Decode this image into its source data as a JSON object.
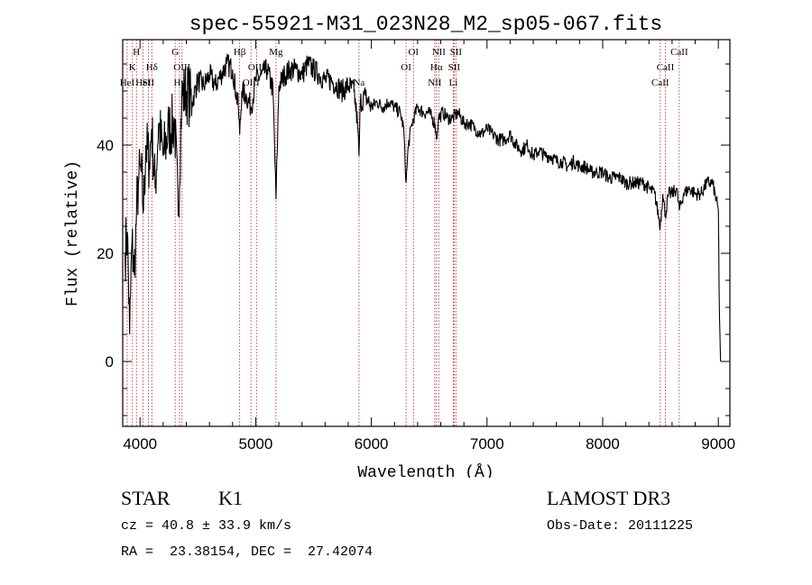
{
  "chart_data": {
    "type": "line",
    "title": "spec-55921-M31_023N28_M2_sp05-067.fits",
    "xlabel": "Wavelength (Å)",
    "ylabel": "Flux (relative)",
    "xlim": [
      3850,
      9100
    ],
    "ylim": [
      -12,
      59.5
    ],
    "xticks": [
      4000,
      5000,
      6000,
      7000,
      8000,
      9000
    ],
    "yticks": [
      0,
      20,
      40
    ],
    "series": [
      {
        "name": "spectrum",
        "x": [
          3870,
          3890,
          3910,
          3930,
          3950,
          3970,
          3990,
          4010,
          4030,
          4050,
          4080,
          4100,
          4130,
          4160,
          4200,
          4250,
          4300,
          4330,
          4360,
          4400,
          4450,
          4500,
          4550,
          4600,
          4650,
          4700,
          4750,
          4800,
          4850,
          4862,
          4880,
          4920,
          4960,
          5000,
          5050,
          5100,
          5150,
          5175,
          5185,
          5200,
          5250,
          5300,
          5350,
          5400,
          5450,
          5500,
          5550,
          5600,
          5650,
          5700,
          5750,
          5800,
          5850,
          5880,
          5893,
          5905,
          5950,
          6000,
          6050,
          6100,
          6150,
          6200,
          6250,
          6280,
          6300,
          6320,
          6350,
          6400,
          6450,
          6500,
          6550,
          6563,
          6580,
          6620,
          6660,
          6700,
          6750,
          6800,
          6850,
          6900,
          6950,
          7000,
          7050,
          7100,
          7150,
          7200,
          7250,
          7300,
          7350,
          7400,
          7450,
          7500,
          7550,
          7600,
          7650,
          7700,
          7750,
          7800,
          7850,
          7900,
          7950,
          8000,
          8050,
          8100,
          8150,
          8200,
          8250,
          8300,
          8350,
          8400,
          8450,
          8498,
          8520,
          8542,
          8570,
          8600,
          8640,
          8662,
          8700,
          8750,
          8800,
          8850,
          8900,
          8950,
          9000,
          9010,
          9020
        ],
        "values": [
          20,
          24,
          5,
          22,
          16,
          28,
          34,
          35,
          28,
          40,
          37,
          43,
          32,
          44,
          38,
          43,
          44,
          27,
          49,
          50,
          48,
          52,
          51,
          53,
          51,
          53,
          55,
          54,
          47,
          42,
          50,
          49,
          47,
          52,
          53,
          54,
          50,
          30,
          38,
          51,
          53,
          54,
          54,
          53,
          55,
          54,
          53,
          52,
          52,
          51,
          50,
          51,
          50,
          44,
          38,
          48,
          49,
          47,
          48,
          47,
          48,
          47,
          46,
          43,
          33,
          40,
          44,
          47,
          46,
          46,
          44,
          41,
          45,
          46,
          45,
          45,
          46,
          44,
          44,
          43,
          42,
          43,
          42,
          41,
          41,
          42,
          40,
          39,
          40,
          38,
          39,
          38,
          38,
          37,
          37,
          36,
          37,
          36,
          36,
          35,
          35,
          35,
          34,
          34,
          34,
          33,
          33,
          33,
          33,
          32,
          31,
          25,
          31,
          27,
          31,
          31,
          32,
          28,
          31,
          32,
          31,
          31,
          33,
          33,
          28,
          8,
          0
        ]
      }
    ],
    "lines": [
      {
        "x": 3934,
        "label": "K",
        "row": 1
      },
      {
        "x": 3969,
        "label": "H",
        "row": 0
      },
      {
        "x": 3889,
        "label": "HeI",
        "row": 2
      },
      {
        "x": 4026,
        "label": "HeI",
        "row": 2
      },
      {
        "x": 4072,
        "label": "SII",
        "row": 2
      },
      {
        "x": 4102,
        "label": "Hδ",
        "row": 1
      },
      {
        "x": 4304,
        "label": "G",
        "row": 0
      },
      {
        "x": 4341,
        "label": "Hγ",
        "row": 2
      },
      {
        "x": 4363,
        "label": "OIII",
        "row": 1
      },
      {
        "x": 4861,
        "label": "Hβ",
        "row": 0
      },
      {
        "x": 4959,
        "label": "OIII",
        "row": 2
      },
      {
        "x": 5007,
        "label": "OIII",
        "row": 1
      },
      {
        "x": 5175,
        "label": "Mg",
        "row": 0
      },
      {
        "x": 5893,
        "label": "Na",
        "row": 2
      },
      {
        "x": 6300,
        "label": "OI",
        "row": 1
      },
      {
        "x": 6364,
        "label": "OI",
        "row": 0
      },
      {
        "x": 6548,
        "label": "NII",
        "row": 2
      },
      {
        "x": 6563,
        "label": "Hα",
        "row": 1
      },
      {
        "x": 6583,
        "label": "NII",
        "row": 0
      },
      {
        "x": 6708,
        "label": "Li",
        "row": 2
      },
      {
        "x": 6716,
        "label": "SII",
        "row": 1
      },
      {
        "x": 6731,
        "label": "SII",
        "row": 0
      },
      {
        "x": 8498,
        "label": "CaII",
        "row": 2
      },
      {
        "x": 8542,
        "label": "CaII",
        "row": 1
      },
      {
        "x": 8662,
        "label": "CaII",
        "row": 0
      }
    ]
  },
  "info": {
    "class_label": "STAR",
    "subclass_label": "K1",
    "cz_text": "cz = 40.8 ± 33.9 km/s",
    "radec_text": "RA =  23.38154, DEC =  27.42074",
    "survey_label": "LAMOST DR3",
    "obs_date_text": "Obs-Date: 20111225"
  },
  "colors": {
    "axis": "#000000",
    "line_marker": "#cc3333"
  }
}
